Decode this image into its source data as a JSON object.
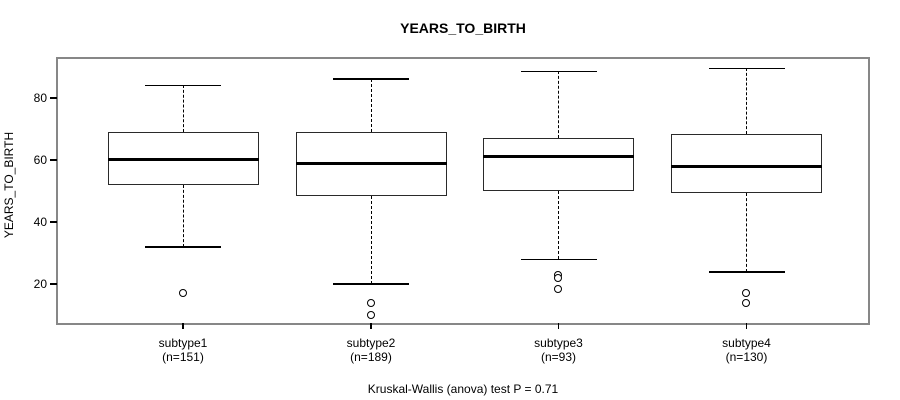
{
  "title": "YEARS_TO_BIRTH",
  "footer": "Kruskal-Wallis (anova) test P = 0.71",
  "colors": {
    "background": "#ffffff",
    "frame": "#878787",
    "box_border": "#2a2a2a",
    "median": "#000000",
    "text": "#000000"
  },
  "chart_data": {
    "type": "boxplot",
    "title": "YEARS_TO_BIRTH",
    "xlabel": "",
    "ylabel": "YEARS_TO_BIRTH",
    "ylim": [
      7.5,
      92.5
    ],
    "yticks": [
      20,
      40,
      60,
      80
    ],
    "grid": false,
    "annotation": "Kruskal-Wallis (anova) test P = 0.71",
    "categories": [
      "subtype1",
      "subtype2",
      "subtype3",
      "subtype4"
    ],
    "groups": [
      {
        "label": "subtype1",
        "sublabel": "(n=151)",
        "n": 151,
        "whisker_low": 32,
        "q1": 52,
        "median": 60,
        "q3": 69,
        "whisker_high": 84,
        "outliers": [
          17
        ]
      },
      {
        "label": "subtype2",
        "sublabel": "(n=189)",
        "n": 189,
        "whisker_low": 20,
        "q1": 48.5,
        "median": 59,
        "q3": 69,
        "whisker_high": 86,
        "outliers": [
          14,
          10
        ]
      },
      {
        "label": "subtype3",
        "sublabel": "(n=93)",
        "n": 93,
        "whisker_low": 28,
        "q1": 50,
        "median": 61,
        "q3": 67,
        "whisker_high": 88.5,
        "outliers": [
          23,
          22,
          18.5
        ]
      },
      {
        "label": "subtype4",
        "sublabel": "(n=130)",
        "n": 130,
        "whisker_low": 24,
        "q1": 49.5,
        "median": 58,
        "q3": 68.5,
        "whisker_high": 89.5,
        "outliers": [
          17,
          14
        ]
      }
    ]
  }
}
